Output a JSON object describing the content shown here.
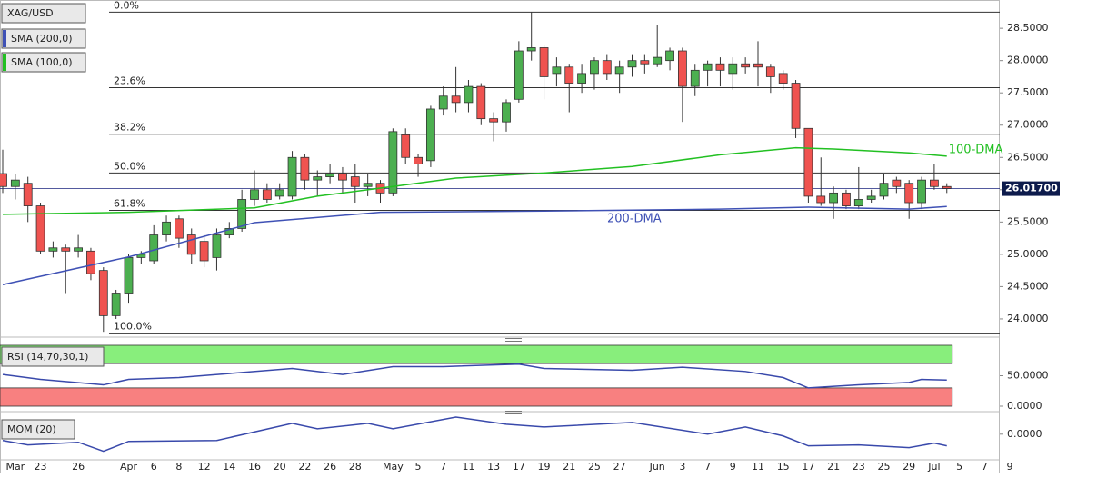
{
  "chart_data": [
    {
      "type": "candlestick",
      "title": "XAG/USD",
      "categories": [
        null,
        "Mar",
        null,
        "23",
        null,
        null,
        "26",
        null,
        null,
        null,
        "Apr",
        null,
        "6",
        null,
        "8",
        null,
        "12",
        null,
        "14",
        null,
        "16",
        null,
        "20",
        null,
        "22",
        null,
        "26",
        null,
        "28",
        null,
        null,
        "May",
        null,
        "5",
        null,
        "7",
        null,
        "11",
        null,
        "13",
        null,
        "17",
        null,
        "19",
        null,
        "21",
        null,
        "25",
        null,
        "27",
        null,
        null,
        "Jun",
        null,
        "3",
        null,
        "7",
        null,
        "9",
        null,
        "11",
        null,
        "15",
        null,
        "17",
        null,
        "21",
        null,
        "23",
        null,
        "25",
        null,
        "29",
        null,
        "Jul",
        null,
        "5",
        null,
        "7",
        null,
        "9"
      ],
      "open": [
        26.25,
        26.05,
        26.1,
        25.75,
        25.05,
        25.1,
        25.05,
        25.05,
        24.75,
        24.05,
        24.4,
        24.95,
        24.9,
        25.3,
        25.55,
        25.3,
        25.2,
        24.95,
        25.3,
        25.4,
        25.85,
        26.0,
        25.9,
        25.9,
        26.5,
        26.15,
        26.2,
        26.25,
        26.2,
        26.05,
        26.1,
        25.95,
        26.85,
        26.5,
        26.45,
        27.25,
        27.45,
        27.35,
        27.6,
        27.1,
        27.05,
        27.4,
        28.15,
        28.2,
        27.8,
        27.9,
        27.65,
        27.8,
        28.0,
        27.8,
        27.9,
        28.0,
        27.95,
        28.0,
        28.15,
        27.6,
        27.85,
        27.95,
        27.8,
        27.95,
        27.95,
        27.9,
        27.8,
        27.65,
        26.95,
        25.9,
        25.8,
        25.95,
        25.75,
        25.85,
        25.9,
        26.15,
        26.1,
        25.8,
        26.15,
        26.05,
        null,
        null,
        null,
        null,
        null
      ],
      "high": [
        26.62,
        26.25,
        26.2,
        25.8,
        25.2,
        25.15,
        25.3,
        25.1,
        24.8,
        24.45,
        25.0,
        25.05,
        25.45,
        25.6,
        25.6,
        25.4,
        25.3,
        25.4,
        25.5,
        26.0,
        26.3,
        26.1,
        26.1,
        26.6,
        26.55,
        26.3,
        26.4,
        26.35,
        26.4,
        26.25,
        26.15,
        26.95,
        26.95,
        26.55,
        27.3,
        27.6,
        27.9,
        27.7,
        27.65,
        27.2,
        27.4,
        28.3,
        28.75,
        28.25,
        28.05,
        27.95,
        27.95,
        28.05,
        28.1,
        28.0,
        28.1,
        28.1,
        28.55,
        28.2,
        28.2,
        27.95,
        28.0,
        28.05,
        28.05,
        28.05,
        28.3,
        27.95,
        27.85,
        27.7,
        26.95,
        26.5,
        26.05,
        26.0,
        26.35,
        26.0,
        26.25,
        26.2,
        26.15,
        26.2,
        26.4,
        26.1,
        null,
        null,
        null,
        null,
        null
      ],
      "low": [
        25.95,
        25.85,
        25.5,
        25.0,
        24.95,
        24.4,
        24.95,
        24.6,
        23.8,
        24.0,
        24.25,
        24.85,
        24.85,
        25.2,
        25.1,
        24.85,
        24.8,
        24.75,
        25.25,
        25.35,
        25.75,
        25.8,
        25.85,
        25.85,
        26.0,
        25.9,
        26.1,
        25.95,
        25.8,
        25.9,
        25.8,
        25.9,
        26.4,
        26.2,
        26.35,
        27.15,
        27.2,
        27.2,
        27.0,
        26.75,
        26.9,
        27.35,
        28.0,
        27.4,
        27.6,
        27.2,
        27.5,
        27.55,
        27.7,
        27.5,
        27.75,
        27.8,
        27.9,
        27.85,
        27.05,
        27.45,
        27.6,
        27.6,
        27.55,
        27.8,
        27.6,
        27.5,
        27.55,
        26.8,
        25.8,
        25.75,
        25.55,
        25.7,
        25.7,
        25.8,
        25.85,
        25.95,
        25.55,
        25.7,
        26.0,
        25.95,
        null,
        null,
        null,
        null,
        null
      ],
      "close": [
        26.05,
        26.15,
        25.75,
        25.05,
        25.1,
        25.05,
        25.1,
        24.7,
        24.05,
        24.4,
        24.95,
        25.0,
        25.3,
        25.5,
        25.25,
        25.0,
        24.9,
        25.3,
        25.4,
        25.85,
        26.0,
        25.85,
        26.0,
        26.5,
        26.15,
        26.2,
        26.25,
        26.15,
        26.05,
        26.1,
        25.95,
        26.9,
        26.5,
        26.4,
        27.25,
        27.45,
        27.35,
        27.6,
        27.1,
        27.05,
        27.35,
        28.15,
        28.2,
        27.75,
        27.9,
        27.65,
        27.8,
        28.0,
        27.8,
        27.9,
        28.0,
        27.95,
        28.05,
        28.15,
        27.6,
        27.85,
        27.95,
        27.85,
        27.95,
        27.9,
        27.9,
        27.75,
        27.65,
        26.95,
        25.9,
        25.8,
        25.95,
        25.75,
        25.85,
        25.9,
        26.1,
        26.05,
        25.8,
        26.15,
        26.05,
        26.02,
        null,
        null,
        null,
        null,
        null
      ],
      "up_color": "#4caf50",
      "down_color": "#ef5350",
      "overlays": [
        {
          "name": "SMA (200,0)",
          "label": "200-DMA",
          "color": "#3f51b5",
          "x": [
            0,
            10,
            20,
            30,
            43,
            57,
            64,
            72,
            75
          ],
          "values": [
            24.53,
            24.96,
            25.49,
            25.65,
            25.67,
            25.7,
            25.73,
            25.7,
            25.74
          ]
        },
        {
          "name": "SMA (100,0)",
          "label": "100-DMA",
          "color": "#22c022",
          "x": [
            0,
            10,
            20,
            25,
            31,
            36,
            43,
            50,
            57,
            63,
            66,
            72,
            75
          ],
          "values": [
            25.62,
            25.65,
            25.72,
            25.9,
            26.05,
            26.18,
            26.26,
            26.36,
            26.54,
            26.65,
            26.63,
            26.57,
            26.52
          ]
        }
      ],
      "levels": [
        {
          "label": "0.0%",
          "value": 28.75
        },
        {
          "label": "23.6%",
          "value": 27.58
        },
        {
          "label": "38.2%",
          "value": 26.86
        },
        {
          "label": "50.0%",
          "value": 26.26
        },
        {
          "label": "61.8%",
          "value": 25.68
        },
        {
          "label": "100.0%",
          "value": 23.78
        }
      ],
      "last_price": {
        "value": 26.017,
        "label": "26.01700"
      },
      "ylim": [
        23.76,
        28.91
      ],
      "yticks": [
        {
          "value": 24,
          "label": "24.0000"
        },
        {
          "value": 24.5,
          "label": "24.5000"
        },
        {
          "value": 25,
          "label": "25.0000"
        },
        {
          "value": 25.5,
          "label": "25.5000"
        },
        {
          "value": 26,
          "label": "26.0000"
        },
        {
          "value": 26.5,
          "label": "26.5000"
        },
        {
          "value": 27,
          "label": "27.0000"
        },
        {
          "value": 27.5,
          "label": "27.5000"
        },
        {
          "value": 28,
          "label": "28.0000"
        },
        {
          "value": 28.5,
          "label": "28.5000"
        }
      ]
    },
    {
      "type": "line",
      "title": "RSI (14,70,30,1)",
      "color": "#3949ab",
      "x": [
        0,
        3,
        8,
        10,
        14,
        23,
        27,
        31,
        35,
        41,
        43,
        50,
        54,
        59,
        62,
        64,
        68,
        72,
        73,
        75
      ],
      "values": [
        52,
        44,
        35,
        44,
        47,
        62,
        52,
        65,
        65,
        69,
        62,
        59,
        64,
        57,
        47,
        30,
        35,
        39,
        44,
        43
      ],
      "bands": [
        {
          "range": [
            70,
            100
          ],
          "color": "#88ee7c"
        },
        {
          "range": [
            0,
            30
          ],
          "color": "#f88080"
        }
      ],
      "ylim": [
        0,
        100
      ],
      "yticks": [
        {
          "value": 50,
          "label": "50.0000"
        },
        {
          "value": 0,
          "label": "0.0000"
        }
      ]
    },
    {
      "type": "line",
      "title": "MOM (20)",
      "color": "#3949ab",
      "x": [
        0,
        2,
        6,
        8,
        10,
        17,
        23,
        25,
        29,
        31,
        36,
        40,
        43,
        50,
        56,
        59,
        62,
        64,
        68,
        72,
        74,
        75
      ],
      "values": [
        -0.28,
        -0.48,
        -0.36,
        -0.76,
        -0.32,
        -0.28,
        0.48,
        0.24,
        0.48,
        0.24,
        0.76,
        0.44,
        0.32,
        0.52,
        0,
        0.32,
        -0.08,
        -0.52,
        -0.48,
        -0.6,
        -0.4,
        -0.52
      ],
      "ylim": [
        -1.1,
        0.8
      ],
      "yticks": [
        {
          "value": 0,
          "label": "0.0000"
        }
      ]
    }
  ]
}
